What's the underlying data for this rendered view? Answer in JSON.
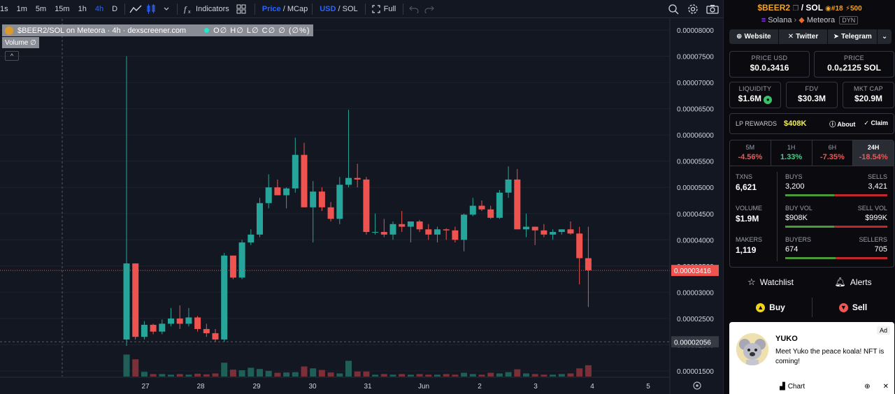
{
  "toolbar": {
    "timeframes": [
      "1s",
      "1m",
      "5m",
      "15m",
      "1h",
      "4h",
      "D"
    ],
    "active_timeframe": "4h",
    "indicators_label": "Indicators",
    "price_label": "Price",
    "mcap_label": "MCap",
    "usd_label": "USD",
    "sol_label": "SOL",
    "full_label": "Full",
    "slash": "/"
  },
  "chart": {
    "legend_title": "$BEER2/SOL on Meteora · 4h · dexscreener.com",
    "legend_ohlc": "O∅ H∅ L∅ C∅ ∅ (∅%)",
    "volume_label": "Volume  ∅",
    "collapse_icon": "^",
    "price_ticks": [
      "0.00008000",
      "0.00007500",
      "0.00007000",
      "0.00006500",
      "0.00006000",
      "0.00005500",
      "0.00005000",
      "0.00004500",
      "0.00004000",
      "0.00003500",
      "0.00003000",
      "0.00002500",
      "0.00002000",
      "0.00001500"
    ],
    "current_price_label": "0.00003416",
    "crosshair_price_label": "0.00002056",
    "x_ticks": [
      "27",
      "28",
      "29",
      "30",
      "31",
      "Jun",
      "2",
      "3",
      "4",
      "5"
    ],
    "colors": {
      "up": "#26a69a",
      "down": "#ef5350",
      "bg": "#131722"
    }
  },
  "chart_data": {
    "type": "candlestick",
    "ylim": [
      1.3e-05,
      8.05e-05
    ],
    "candles": [
      {
        "o": 2.1e-05,
        "h": 7.5e-05,
        "l": 1.98e-05,
        "c": 3.55e-05,
        "v": 7.0
      },
      {
        "o": 3.55e-05,
        "h": 3.55e-05,
        "l": 2.1e-05,
        "c": 2.15e-05,
        "v": 5.5
      },
      {
        "o": 2.15e-05,
        "h": 2.45e-05,
        "l": 2.1e-05,
        "c": 2.38e-05,
        "v": 1.5
      },
      {
        "o": 2.38e-05,
        "h": 2.4e-05,
        "l": 2.2e-05,
        "c": 2.25e-05,
        "v": 0.8
      },
      {
        "o": 2.25e-05,
        "h": 2.48e-05,
        "l": 2.2e-05,
        "c": 2.4e-05,
        "v": 0.8
      },
      {
        "o": 2.4e-05,
        "h": 2.7e-05,
        "l": 2.35e-05,
        "c": 2.5e-05,
        "v": 0.6
      },
      {
        "o": 2.5e-05,
        "h": 2.75e-05,
        "l": 2.3e-05,
        "c": 2.4e-05,
        "v": 0.8
      },
      {
        "o": 2.4e-05,
        "h": 2.7e-05,
        "l": 2.35e-05,
        "c": 2.52e-05,
        "v": 0.6
      },
      {
        "o": 2.52e-05,
        "h": 2.55e-05,
        "l": 2.25e-05,
        "c": 2.3e-05,
        "v": 0.9
      },
      {
        "o": 2.3e-05,
        "h": 2.4e-05,
        "l": 2.15e-05,
        "c": 2.22e-05,
        "v": 0.7
      },
      {
        "o": 2.22e-05,
        "h": 2.3e-05,
        "l": 2.05e-05,
        "c": 2.1e-05,
        "v": 1.0
      },
      {
        "o": 2.1e-05,
        "h": 3.75e-05,
        "l": 2.05e-05,
        "c": 3.7e-05,
        "v": 4.4
      },
      {
        "o": 3.7e-05,
        "h": 3.7e-05,
        "l": 3.25e-05,
        "c": 3.28e-05,
        "v": 2.2
      },
      {
        "o": 3.28e-05,
        "h": 4e-05,
        "l": 3.25e-05,
        "c": 3.95e-05,
        "v": 2.0
      },
      {
        "o": 3.95e-05,
        "h": 4.2e-05,
        "l": 3.9e-05,
        "c": 4.1e-05,
        "v": 2.8
      },
      {
        "o": 4.1e-05,
        "h": 4.8e-05,
        "l": 4.05e-05,
        "c": 4.7e-05,
        "v": 2.4
      },
      {
        "o": 4.7e-05,
        "h": 5.25e-05,
        "l": 4.6e-05,
        "c": 5e-05,
        "v": 1.8
      },
      {
        "o": 5e-05,
        "h": 5.15e-05,
        "l": 4.85e-05,
        "c": 4.85e-05,
        "v": 1.2
      },
      {
        "o": 4.85e-05,
        "h": 5e-05,
        "l": 4.6e-05,
        "c": 4.98e-05,
        "v": 1.3
      },
      {
        "o": 4.98e-05,
        "h": 5.95e-05,
        "l": 4.9e-05,
        "c": 5.62e-05,
        "v": 1.4
      },
      {
        "o": 5.62e-05,
        "h": 5.85e-05,
        "l": 4.62e-05,
        "c": 4.62e-05,
        "v": 3.2
      },
      {
        "o": 4.62e-05,
        "h": 5.12e-05,
        "l": 3.95e-05,
        "c": 4.92e-05,
        "v": 2.6
      },
      {
        "o": 4.92e-05,
        "h": 5e-05,
        "l": 4.55e-05,
        "c": 4.62e-05,
        "v": 2.1
      },
      {
        "o": 4.62e-05,
        "h": 4.72e-05,
        "l": 4.35e-05,
        "c": 4.4e-05,
        "v": 1.3
      },
      {
        "o": 4.4e-05,
        "h": 5.2e-05,
        "l": 4.3e-05,
        "c": 5.05e-05,
        "v": 1.0
      },
      {
        "o": 5.05e-05,
        "h": 6.48e-05,
        "l": 5e-05,
        "c": 5.18e-05,
        "v": 5.0
      },
      {
        "o": 5.18e-05,
        "h": 5.45e-05,
        "l": 5e-05,
        "c": 5.15e-05,
        "v": 1.6
      },
      {
        "o": 5.15e-05,
        "h": 5.2e-05,
        "l": 4.1e-05,
        "c": 4.15e-05,
        "v": 1.6
      },
      {
        "o": 4.15e-05,
        "h": 4.5e-05,
        "l": 4.1e-05,
        "c": 4.15e-05,
        "v": 0.6
      },
      {
        "o": 4.15e-05,
        "h": 4.4e-05,
        "l": 4.05e-05,
        "c": 4.1e-05,
        "v": 0.8
      },
      {
        "o": 4.1e-05,
        "h": 4.35e-05,
        "l": 4e-05,
        "c": 4.3e-05,
        "v": 0.6
      },
      {
        "o": 4.3e-05,
        "h": 4.55e-05,
        "l": 4.15e-05,
        "c": 4.25e-05,
        "v": 0.8
      },
      {
        "o": 4.25e-05,
        "h": 4.35e-05,
        "l": 3.95e-05,
        "c": 4.35e-05,
        "v": 0.6
      },
      {
        "o": 4.35e-05,
        "h": 4.38e-05,
        "l": 4.15e-05,
        "c": 4.2e-05,
        "v": 0.8
      },
      {
        "o": 4.2e-05,
        "h": 4.3e-05,
        "l": 4e-05,
        "c": 4.1e-05,
        "v": 0.6
      },
      {
        "o": 4.1e-05,
        "h": 4.25e-05,
        "l": 3.95e-05,
        "c": 4.2e-05,
        "v": 0.6
      },
      {
        "o": 4.2e-05,
        "h": 4.22e-05,
        "l": 4e-05,
        "c": 4.18e-05,
        "v": 0.8
      },
      {
        "o": 4.18e-05,
        "h": 4.25e-05,
        "l": 3.95e-05,
        "c": 4e-05,
        "v": 0.6
      },
      {
        "o": 4e-05,
        "h": 4.5e-05,
        "l": 3.78e-05,
        "c": 4.48e-05,
        "v": 1.2
      },
      {
        "o": 4.48e-05,
        "h": 4.8e-05,
        "l": 4.45e-05,
        "c": 4.65e-05,
        "v": 0.8
      },
      {
        "o": 4.65e-05,
        "h": 4.75e-05,
        "l": 4.55e-05,
        "c": 4.58e-05,
        "v": 0.6
      },
      {
        "o": 4.58e-05,
        "h": 4.65e-05,
        "l": 4.4e-05,
        "c": 4.42e-05,
        "v": 1.2
      },
      {
        "o": 4.42e-05,
        "h": 4.95e-05,
        "l": 4.4e-05,
        "c": 4.9e-05,
        "v": 1.0
      },
      {
        "o": 4.9e-05,
        "h": 5.4e-05,
        "l": 4.8e-05,
        "c": 5.15e-05,
        "v": 1.4
      },
      {
        "o": 5.15e-05,
        "h": 5.35e-05,
        "l": 4.2e-05,
        "c": 4.2e-05,
        "v": 2.3
      },
      {
        "o": 4.2e-05,
        "h": 4.5e-05,
        "l": 4.05e-05,
        "c": 4.25e-05,
        "v": 1.0
      },
      {
        "o": 4.25e-05,
        "h": 4.25e-05,
        "l": 3.9e-05,
        "c": 4.18e-05,
        "v": 0.8
      },
      {
        "o": 4.18e-05,
        "h": 4.3e-05,
        "l": 4.05e-05,
        "c": 4.1e-05,
        "v": 0.6
      },
      {
        "o": 4.1e-05,
        "h": 4.2e-05,
        "l": 4e-05,
        "c": 4.15e-05,
        "v": 0.6
      },
      {
        "o": 4.15e-05,
        "h": 4.2e-05,
        "l": 4.1e-05,
        "c": 4.2e-05,
        "v": 0.8
      },
      {
        "o": 4.2e-05,
        "h": 4.35e-05,
        "l": 4.1e-05,
        "c": 4.12e-05,
        "v": 1.0
      },
      {
        "o": 4.12e-05,
        "h": 4.25e-05,
        "l": 3.15e-05,
        "c": 3.65e-05,
        "v": 2.6
      },
      {
        "o": 3.65e-05,
        "h": 4.25e-05,
        "l": 2.72e-05,
        "c": 3.42e-05,
        "v": 3.6
      }
    ],
    "xlabel": "",
    "ylabel": ""
  },
  "sidebar": {
    "base": "$BEER2",
    "slash": "/",
    "quote": "SOL",
    "rank": "#18",
    "boost": "500",
    "chain": "Solana",
    "dex": "Meteora",
    "dyn": "DYN",
    "links": [
      "Website",
      "Twitter",
      "Telegram"
    ],
    "price_usd_label": "PRICE USD",
    "price_usd": "$0.0₄3416",
    "price_label": "PRICE",
    "price": "0.0₆2125 SOL",
    "liquidity_label": "LIQUIDITY",
    "liquidity": "$1.6M",
    "fdv_label": "FDV",
    "fdv": "$30.3M",
    "mktcap_label": "MKT CAP",
    "mktcap": "$20.9M",
    "lp_label": "LP REWARDS",
    "lp_value": "$408K",
    "about": "About",
    "claim": "Claim",
    "timeframes": [
      {
        "t": "5M",
        "p": "-4.56%",
        "cls": "neg"
      },
      {
        "t": "1H",
        "p": "1.33%",
        "cls": "pos"
      },
      {
        "t": "6H",
        "p": "-7.35%",
        "cls": "neg"
      },
      {
        "t": "24H",
        "p": "-18.54%",
        "cls": "neg"
      }
    ],
    "txns_label": "TXNS",
    "txns": "6,621",
    "buys_label": "BUYS",
    "buys": "3,200",
    "sells_label": "SELLS",
    "sells": "3,421",
    "buys_fraction": 0.48,
    "volume_label": "VOLUME",
    "volume": "$1.9M",
    "buyvol_label": "BUY VOL",
    "buyvol": "$908K",
    "sellvol_label": "SELL VOL",
    "sellvol": "$999K",
    "buyvol_fraction": 0.48,
    "makers_label": "MAKERS",
    "makers": "1,119",
    "buyers_label": "BUYERS",
    "buyers": "674",
    "sellers_label": "SELLERS",
    "sellers": "705",
    "buyers_fraction": 0.49,
    "watchlist": "Watchlist",
    "alerts": "Alerts",
    "buy": "Buy",
    "sell": "Sell",
    "ad_badge": "Ad",
    "ad_title": "YUKO",
    "ad_text": "Meet Yuko the peace koala! NFT is coming!",
    "ad_chart": "Chart"
  }
}
